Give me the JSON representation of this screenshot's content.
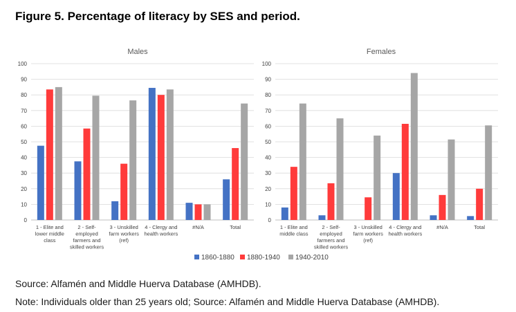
{
  "figure_title": "Figure 5. Percentage of literacy by SES and period.",
  "source_text": "Source: Alfamén and Middle Huerva Database (AMHDB).",
  "note_text": "Note: Individuals older than 25 years old; Source: Alfamén and Middle Huerva Database (AMHDB).",
  "colors": {
    "1860-1880": "#4472C4",
    "1880-1940": "#FF3B3B",
    "1940-2010": "#A6A6A6",
    "axis": "#BFBFBF",
    "grid": "#D9D9D9"
  },
  "chart_data": [
    {
      "type": "bar",
      "title": "Males",
      "ylim": [
        0,
        100
      ],
      "yticks": [
        "0",
        "10",
        "20",
        "30",
        "40",
        "50",
        "60",
        "70",
        "80",
        "90",
        "100"
      ],
      "grid": true,
      "legend_position": "bottom",
      "categories": [
        [
          "1 - Elite and",
          "lower middle",
          "class"
        ],
        [
          "2 - Self-",
          "employed",
          "farmers and",
          "skilled workers"
        ],
        [
          "3 - Unskilled",
          "farm workers",
          "(ref)"
        ],
        [
          "4 - Clergy and",
          "health workers"
        ],
        [
          "#N/A"
        ],
        [
          "Total"
        ]
      ],
      "series": [
        {
          "name": "1860-1880",
          "values": [
            47.5,
            37.5,
            12,
            84.5,
            11,
            26
          ]
        },
        {
          "name": "1880-1940",
          "values": [
            83.5,
            58.5,
            36,
            80,
            10,
            46
          ]
        },
        {
          "name": "1940-2010",
          "values": [
            85,
            79.5,
            76.5,
            83.5,
            10,
            74.5
          ]
        }
      ]
    },
    {
      "type": "bar",
      "title": "Females",
      "ylim": [
        0,
        100
      ],
      "yticks": [
        "0",
        "10",
        "20",
        "30",
        "40",
        "50",
        "60",
        "70",
        "80",
        "90",
        "100"
      ],
      "grid": true,
      "legend_position": "bottom",
      "categories": [
        [
          "1 - Elite and",
          "middle class"
        ],
        [
          "2 - Self-",
          "employed",
          "farmers and",
          "skilled workers"
        ],
        [
          "3 - Unskilled",
          "farm workers",
          "(ref)"
        ],
        [
          "4 - Clergy and",
          "health workers"
        ],
        [
          "#N/A"
        ],
        [
          "Total"
        ]
      ],
      "series": [
        {
          "name": "1860-1880",
          "values": [
            8,
            3,
            0,
            30,
            3,
            2.5
          ]
        },
        {
          "name": "1880-1940",
          "values": [
            34,
            23.5,
            14.5,
            61.5,
            16,
            20
          ]
        },
        {
          "name": "1940-2010",
          "values": [
            74.5,
            65,
            54,
            94,
            51.5,
            60.5
          ]
        }
      ]
    }
  ]
}
